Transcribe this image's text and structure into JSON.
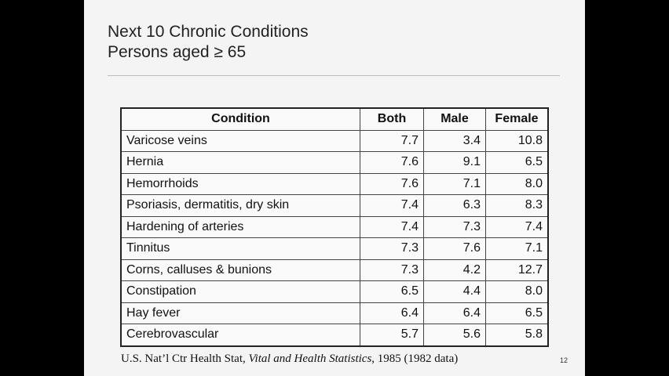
{
  "slide": {
    "title_line1": "Next 10 Chronic Conditions",
    "title_line2": "Persons aged ≥ 65",
    "page_number": "12"
  },
  "table": {
    "headers": [
      "Condition",
      "Both",
      "Male",
      "Female"
    ],
    "rows": [
      [
        "Varicose veins",
        "7.7",
        "3.4",
        "10.8"
      ],
      [
        "Hernia",
        "7.6",
        "9.1",
        "6.5"
      ],
      [
        "Hemorrhoids",
        "7.6",
        "7.1",
        "8.0"
      ],
      [
        "Psoriasis, dermatitis, dry skin",
        "7.4",
        "6.3",
        "8.3"
      ],
      [
        "Hardening of arteries",
        "7.4",
        "7.3",
        "7.4"
      ],
      [
        "Tinnitus",
        "7.3",
        "7.6",
        "7.1"
      ],
      [
        "Corns, calluses & bunions",
        "7.3",
        "4.2",
        "12.7"
      ],
      [
        "Constipation",
        "6.5",
        "4.4",
        "8.0"
      ],
      [
        "Hay fever",
        "6.4",
        "6.4",
        "6.5"
      ],
      [
        "Cerebrovascular",
        "5.7",
        "5.6",
        "5.8"
      ]
    ]
  },
  "source": {
    "prefix": "U.S. Nat’l Ctr Health Stat, ",
    "publication": "Vital and Health Statistics",
    "suffix": ", 1985 (1982 data)"
  }
}
